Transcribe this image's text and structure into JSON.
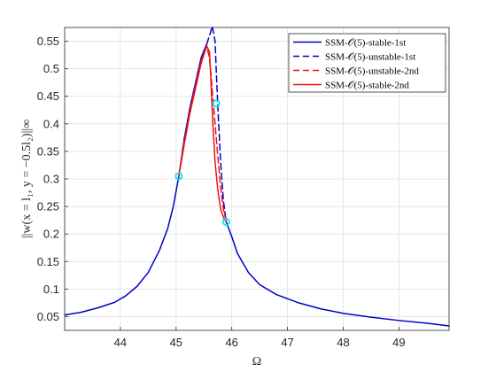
{
  "chart_data": {
    "type": "line",
    "xlabel": "Ω",
    "ylabel": "||w(x = l₁, y = −0.5l₂)||∞",
    "xlim": [
      43.0,
      49.9
    ],
    "ylim": [
      0.025,
      0.575
    ],
    "xticks": [
      44,
      45,
      46,
      47,
      48,
      49
    ],
    "xtick_labels": [
      "44",
      "45",
      "46",
      "47",
      "48",
      "49"
    ],
    "yticks": [
      0.05,
      0.1,
      0.15,
      0.2,
      0.25,
      0.3,
      0.35,
      0.4,
      0.45,
      0.5,
      0.55
    ],
    "ytick_labels": [
      "0.05",
      "0.1",
      "0.15",
      "0.2",
      "0.25",
      "0.3",
      "0.35",
      "0.4",
      "0.45",
      "0.5",
      "0.55"
    ],
    "grid": true,
    "legend_position": "top-right",
    "series": [
      {
        "name": "SSM-𝒪(5)-stable-1st",
        "color": "#0000cc",
        "style": "solid",
        "segments": [
          {
            "x": [
              43.0,
              43.3,
              43.6,
              43.9,
              44.1,
              44.3,
              44.5,
              44.7,
              44.85,
              44.95,
              45.05,
              45.15,
              45.25,
              45.35,
              45.45,
              45.55
            ],
            "y": [
              0.053,
              0.058,
              0.066,
              0.076,
              0.088,
              0.105,
              0.13,
              0.17,
              0.21,
              0.25,
              0.305,
              0.375,
              0.43,
              0.475,
              0.52,
              0.545
            ]
          },
          {
            "x": [
              45.9,
              46.0,
              46.1,
              46.3,
              46.5,
              46.8,
              47.2,
              47.6,
              48.0,
              48.5,
              49.0,
              49.5,
              49.9
            ],
            "y": [
              0.222,
              0.195,
              0.165,
              0.13,
              0.108,
              0.09,
              0.075,
              0.064,
              0.056,
              0.049,
              0.043,
              0.038,
              0.033
            ]
          }
        ]
      },
      {
        "name": "SSM-𝒪(5)-unstable-1st",
        "color": "#0000cc",
        "style": "dashed",
        "segments": [
          {
            "x": [
              45.55,
              45.6,
              45.65,
              45.7,
              45.72,
              45.75,
              45.8,
              45.85,
              45.9
            ],
            "y": [
              0.545,
              0.56,
              0.577,
              0.55,
              0.5,
              0.43,
              0.33,
              0.26,
              0.222
            ]
          }
        ]
      },
      {
        "name": "SSM-𝒪(5)-unstable-2nd",
        "color": "#ee1111",
        "style": "dashed",
        "segments": [
          {
            "x": [
              45.05,
              45.15,
              45.25,
              45.35,
              45.45,
              45.55,
              45.6,
              45.65,
              45.7,
              45.75,
              45.8,
              45.85,
              45.9
            ],
            "y": [
              0.305,
              0.37,
              0.425,
              0.47,
              0.515,
              0.54,
              0.52,
              0.46,
              0.4,
              0.34,
              0.285,
              0.245,
              0.222
            ]
          }
        ]
      },
      {
        "name": "SSM-𝒪(5)-stable-2nd",
        "color": "#ee1111",
        "style": "solid",
        "segments": [
          {
            "x": [
              45.05,
              45.15,
              45.25,
              45.35,
              45.45,
              45.55,
              45.6,
              45.62,
              45.66,
              45.7,
              45.75,
              45.8,
              45.87
            ],
            "y": [
              0.305,
              0.365,
              0.42,
              0.465,
              0.51,
              0.542,
              0.53,
              0.49,
              0.4,
              0.33,
              0.28,
              0.245,
              0.225
            ]
          }
        ]
      }
    ],
    "markers": {
      "color": "#00e5ee",
      "points": [
        {
          "x": 45.05,
          "y": 0.305
        },
        {
          "x": 45.72,
          "y": 0.437
        },
        {
          "x": 45.9,
          "y": 0.222
        }
      ]
    }
  }
}
